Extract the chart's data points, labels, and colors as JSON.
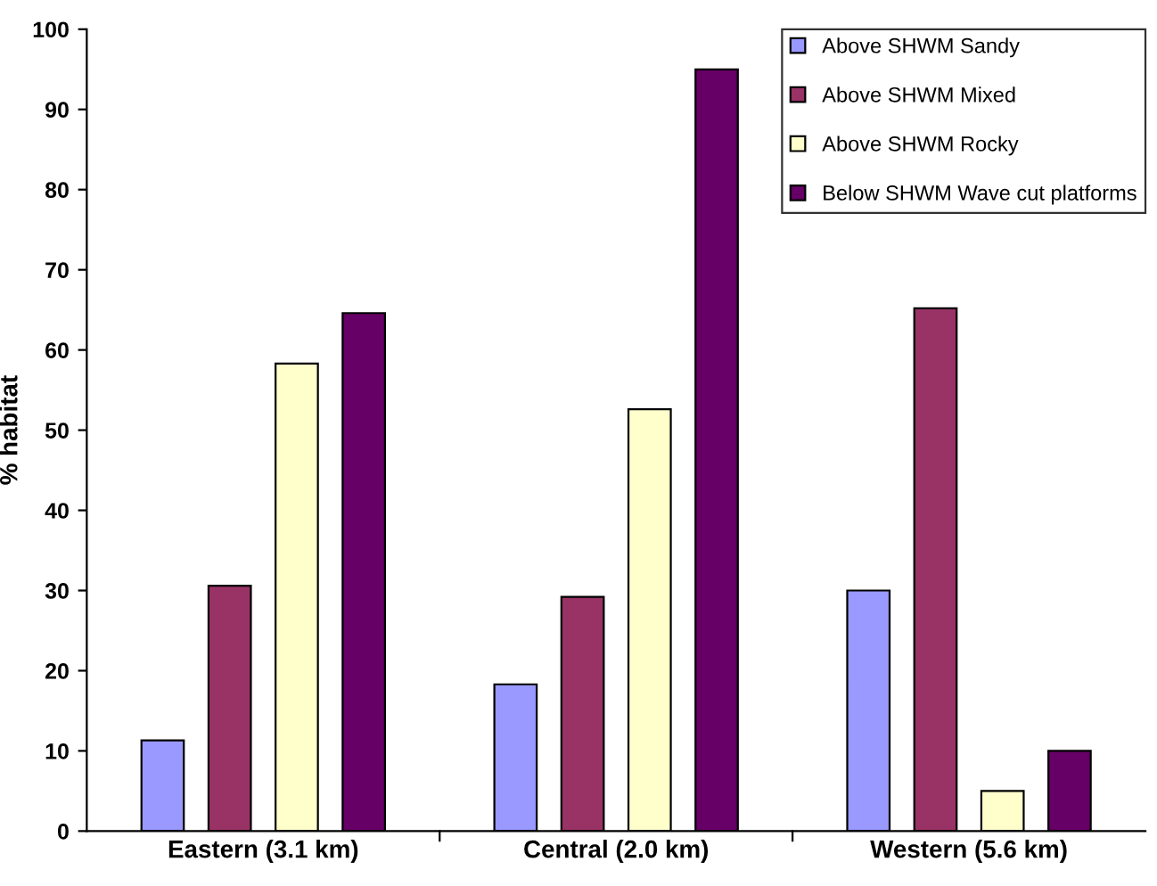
{
  "chart_data": {
    "type": "bar",
    "ylabel": "% habitat",
    "categories": [
      "Eastern (3.1 km)",
      "Central (2.0 km)",
      "Western (5.6 km)"
    ],
    "series": [
      {
        "name": "Above SHWM Sandy",
        "color": "#9999ff",
        "values": [
          11.3,
          18.3,
          30
        ]
      },
      {
        "name": "Above SHWM Mixed",
        "color": "#993366",
        "values": [
          30.6,
          29.2,
          65.2
        ]
      },
      {
        "name": "Above SHWM Rocky",
        "color": "#ffffcc",
        "values": [
          58.3,
          52.6,
          5
        ]
      },
      {
        "name": "Below SHWM Wave cut platforms",
        "color": "#660066",
        "values": [
          64.6,
          95,
          10
        ]
      }
    ],
    "ylim": [
      0,
      100
    ],
    "yticks": [
      0,
      10,
      20,
      30,
      40,
      50,
      60,
      70,
      80,
      90,
      100
    ],
    "grid": false,
    "legend": "top right"
  }
}
